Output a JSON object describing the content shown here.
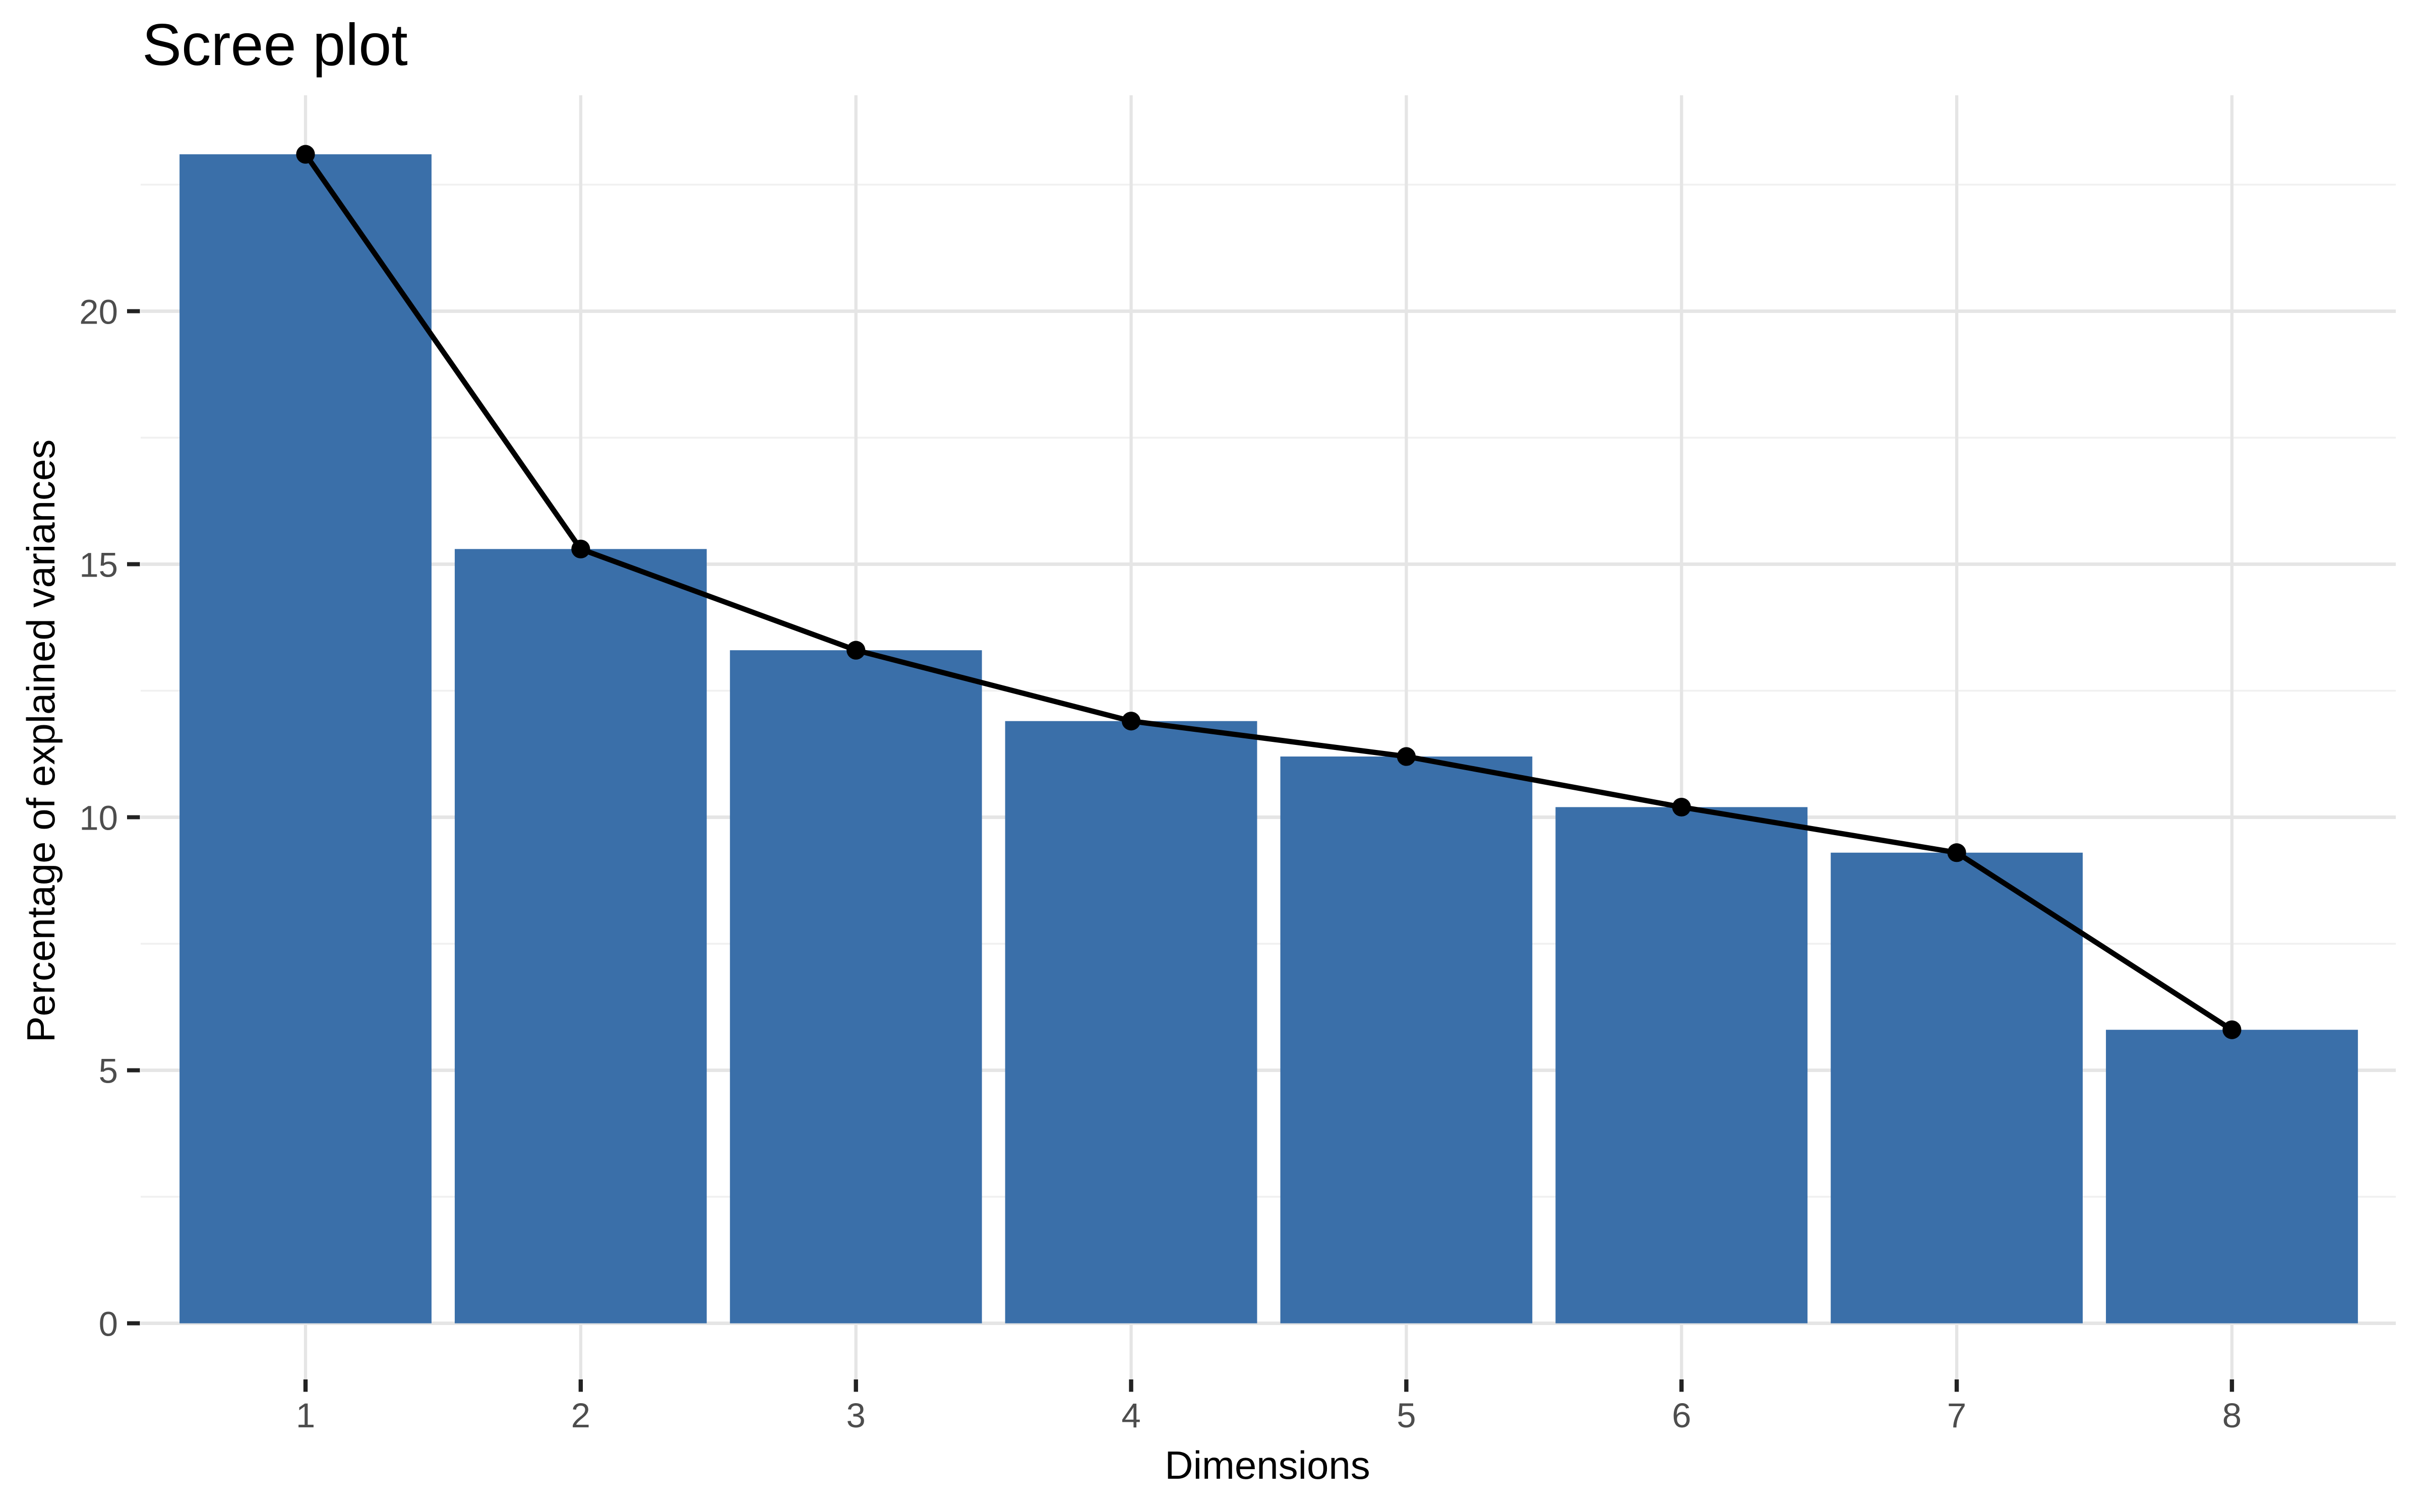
{
  "title": "Scree plot",
  "chart_data": {
    "type": "bar",
    "title": "Scree plot",
    "xlabel": "Dimensions",
    "ylabel": "Percentage of explained variances",
    "categories": [
      "1",
      "2",
      "3",
      "4",
      "5",
      "6",
      "7",
      "8"
    ],
    "values": [
      23.1,
      15.3,
      13.3,
      11.9,
      11.2,
      10.2,
      9.3,
      5.8
    ],
    "overlays": [
      "line-through-bar-tops",
      "points-at-bar-tops"
    ],
    "ylim": [
      0,
      24.3
    ],
    "yticks_major": [
      0,
      5,
      10,
      15,
      20
    ],
    "yticks_minor": [
      2.5,
      7.5,
      12.5,
      17.5,
      22.5
    ],
    "grid": {
      "horizontal": "major-and-minor",
      "vertical": "major-only-at-category-centers"
    },
    "legend": "none",
    "colors": {
      "bar_fill": "#3A6FA9",
      "line": "#000000",
      "point": "#000000",
      "grid_major": "#E5E5E5",
      "grid_minor": "#F0F0F0",
      "axis_tick": "#222222",
      "tick_label_text": "#4D4D4D",
      "title_text": "#000000",
      "background": "#FFFFFF"
    }
  }
}
